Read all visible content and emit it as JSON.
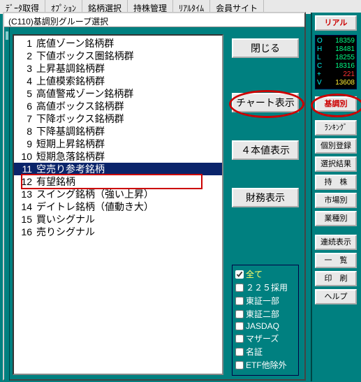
{
  "menubar": [
    "ﾃﾞｰﾀ取得",
    "ｵﾌﾟｼｮﾝ",
    "銘柄選択",
    "持株管理",
    "ﾘｱﾙﾀｲﾑ",
    "会員サイト"
  ],
  "dialog_title": "(C110)基調別グループ選択",
  "list": [
    {
      "n": "1",
      "t": "底値ゾーン銘柄群"
    },
    {
      "n": "2",
      "t": "下値ボックス圏銘柄群"
    },
    {
      "n": "3",
      "t": "上昇基調銘柄群"
    },
    {
      "n": "4",
      "t": "上値模索銘柄群"
    },
    {
      "n": "5",
      "t": "高値警戒ゾーン銘柄群"
    },
    {
      "n": "6",
      "t": "高値ボックス銘柄群"
    },
    {
      "n": "7",
      "t": "下降ボックス銘柄群"
    },
    {
      "n": "8",
      "t": "下降基調銘柄群"
    },
    {
      "n": "9",
      "t": "短期上昇銘柄群"
    },
    {
      "n": "10",
      "t": "短期急落銘柄群"
    },
    {
      "n": "11",
      "t": "空売り参考銘柄",
      "sel": true
    },
    {
      "n": "12",
      "t": "有望銘柄"
    },
    {
      "n": "13",
      "t": "スイング銘柄（強い上昇）"
    },
    {
      "n": "14",
      "t": "デイトレ銘柄（値動き大）"
    },
    {
      "n": "15",
      "t": "買いシグナル"
    },
    {
      "n": "16",
      "t": "売りシグナル"
    }
  ],
  "buttons": {
    "close": "閉じる",
    "chart": "チャート表示",
    "fourval": "４本値表示",
    "finance": "財務表示"
  },
  "checks": [
    {
      "k": "all",
      "label": "全て",
      "checked": true,
      "style": "all"
    },
    {
      "k": "n225",
      "label": "２２５採用",
      "checked": false
    },
    {
      "k": "t1",
      "label": "東証一部",
      "checked": false
    },
    {
      "k": "t2",
      "label": "東証二部",
      "checked": false
    },
    {
      "k": "jq",
      "label": "JASDAQ",
      "checked": false
    },
    {
      "k": "mz",
      "label": "マザーズ",
      "checked": false
    },
    {
      "k": "mei",
      "label": "名証",
      "checked": false
    },
    {
      "k": "etf",
      "label": "ETF他除外",
      "checked": false
    }
  ],
  "sidebar": {
    "real": "リアル",
    "ticker": [
      {
        "lab": "O",
        "val": "18359",
        "c": "val"
      },
      {
        "lab": "H",
        "val": "18481",
        "c": "val"
      },
      {
        "lab": "L",
        "val": "18255",
        "c": "val"
      },
      {
        "lab": "C",
        "val": "18316",
        "c": "val"
      },
      {
        "lab": "+",
        "val": "221",
        "c": "valr"
      },
      {
        "lab": "V",
        "val": "13608",
        "c": "valy"
      }
    ],
    "btns": [
      {
        "k": "kicho",
        "t": "基調別",
        "red": true
      },
      {
        "k": "rank",
        "t": "ﾗﾝｷﾝｸﾞ"
      },
      {
        "k": "indiv",
        "t": "個別登録"
      },
      {
        "k": "selres",
        "t": "選択結果"
      },
      {
        "k": "hold",
        "t": "持　株"
      },
      {
        "k": "market",
        "t": "市場別"
      },
      {
        "k": "sector",
        "t": "業種別"
      },
      {
        "k": "cont",
        "t": "連続表示"
      },
      {
        "k": "list",
        "t": "一　覧"
      },
      {
        "k": "print",
        "t": "印　刷"
      },
      {
        "k": "help",
        "t": "ヘルプ"
      }
    ]
  }
}
